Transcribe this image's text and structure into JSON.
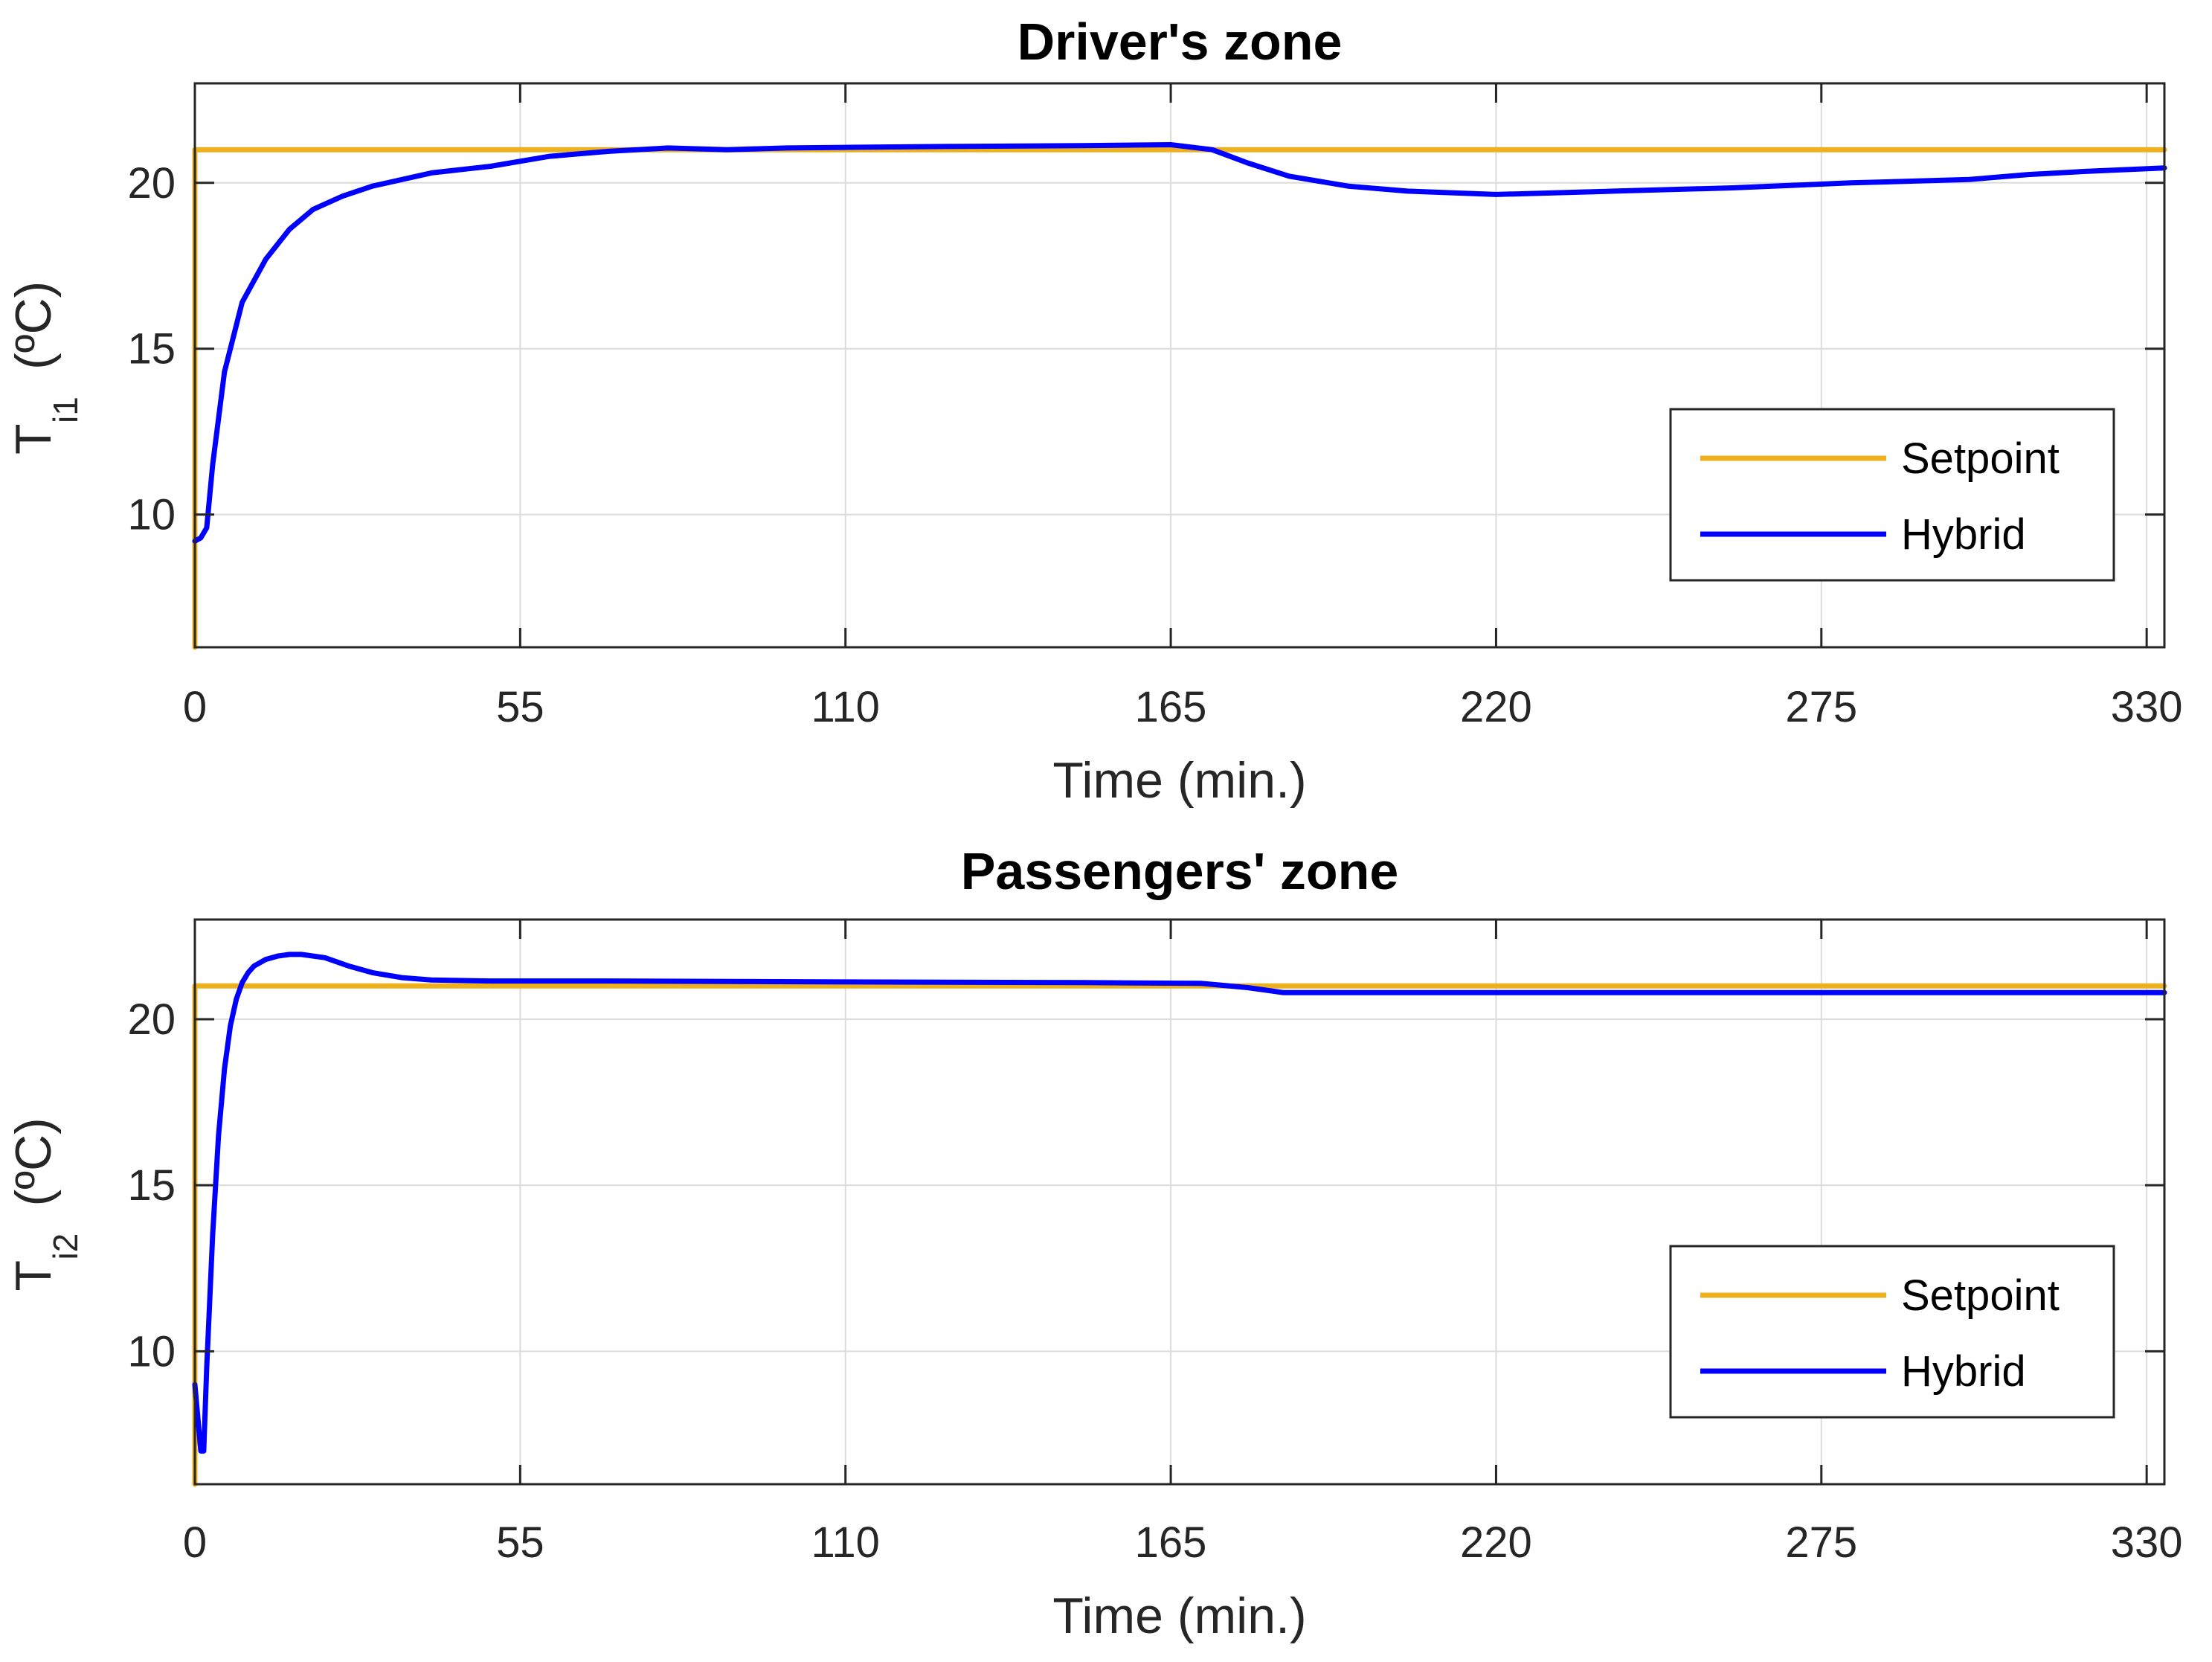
{
  "colors": {
    "setpoint": "#EDB120",
    "hybrid": "#0000FF",
    "grid": "#DCDCDC",
    "axis": "#262626"
  },
  "chart_data": [
    {
      "type": "line",
      "title": "Driver's zone",
      "xlabel": "Time (min.)",
      "ylabel": {
        "base": "T",
        "sub": "i1",
        "unit": "(ºC)"
      },
      "xlim": [
        0,
        333
      ],
      "ylim": [
        6,
        23
      ],
      "xticks": [
        0,
        55,
        110,
        165,
        220,
        275,
        330
      ],
      "yticks": [
        10,
        15,
        20
      ],
      "legend": {
        "position": "bottom-right",
        "entries": [
          "Setpoint",
          "Hybrid"
        ]
      },
      "series": [
        {
          "name": "Setpoint",
          "x": [
            0,
            0,
            333
          ],
          "y": [
            6,
            21,
            21
          ]
        },
        {
          "name": "Hybrid",
          "x": [
            0,
            1,
            2,
            3,
            5,
            8,
            12,
            16,
            20,
            25,
            30,
            40,
            50,
            60,
            70,
            80,
            90,
            100,
            110,
            130,
            150,
            165,
            172,
            178,
            185,
            195,
            205,
            220,
            240,
            260,
            280,
            300,
            310,
            320,
            333
          ],
          "y": [
            9.2,
            9.3,
            9.6,
            11.5,
            14.3,
            16.4,
            17.7,
            18.6,
            19.2,
            19.6,
            19.9,
            20.3,
            20.5,
            20.8,
            20.95,
            21.05,
            21.0,
            21.05,
            21.07,
            21.1,
            21.12,
            21.15,
            21.0,
            20.6,
            20.2,
            19.9,
            19.75,
            19.65,
            19.75,
            19.85,
            20.0,
            20.1,
            20.25,
            20.35,
            20.45
          ]
        }
      ]
    },
    {
      "type": "line",
      "title": "Passengers' zone",
      "xlabel": "Time (min.)",
      "ylabel": {
        "base": "T",
        "sub": "i2",
        "unit": "(ºC)"
      },
      "xlim": [
        0,
        333
      ],
      "ylim": [
        6,
        23
      ],
      "xticks": [
        0,
        55,
        110,
        165,
        220,
        275,
        330
      ],
      "yticks": [
        10,
        15,
        20
      ],
      "legend": {
        "position": "bottom-right",
        "entries": [
          "Setpoint",
          "Hybrid"
        ]
      },
      "series": [
        {
          "name": "Setpoint",
          "x": [
            0,
            0,
            333
          ],
          "y": [
            6,
            21,
            21
          ]
        },
        {
          "name": "Hybrid",
          "x": [
            0,
            0.5,
            1,
            1.5,
            2,
            3,
            4,
            5,
            6,
            7,
            8,
            9,
            10,
            12,
            14,
            16,
            18,
            22,
            26,
            30,
            35,
            40,
            50,
            70,
            110,
            150,
            170,
            178,
            184,
            200,
            250,
            300,
            333
          ],
          "y": [
            9.0,
            8.0,
            7.0,
            7.0,
            9.5,
            13.5,
            16.5,
            18.5,
            19.8,
            20.6,
            21.1,
            21.4,
            21.6,
            21.8,
            21.9,
            21.95,
            21.95,
            21.85,
            21.6,
            21.4,
            21.25,
            21.18,
            21.15,
            21.15,
            21.12,
            21.1,
            21.08,
            20.95,
            20.8,
            20.8,
            20.8,
            20.8,
            20.8
          ]
        }
      ]
    }
  ]
}
